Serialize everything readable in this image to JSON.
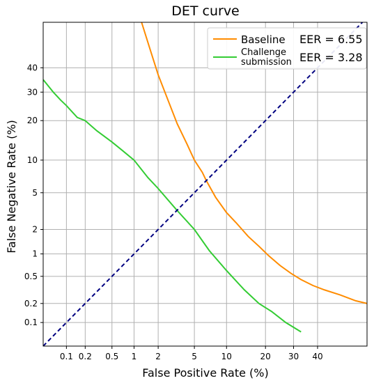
{
  "chart_data": {
    "type": "line",
    "title": "DET curve",
    "xlabel": "False Positive Rate (%)",
    "ylabel": "False Negative Rate (%)",
    "scale": "probit",
    "xlim": [
      0.04,
      62
    ],
    "ylim": [
      0.04,
      60
    ],
    "x_ticks": [
      0.1,
      0.2,
      0.5,
      1,
      2,
      5,
      10,
      20,
      30,
      40
    ],
    "x_tick_labels": [
      "0.1",
      "0.2",
      "0.5",
      "1",
      "2",
      "5",
      "10",
      "20",
      "30",
      "40"
    ],
    "y_ticks": [
      0.1,
      0.2,
      0.5,
      1,
      2,
      5,
      10,
      20,
      30,
      40
    ],
    "y_tick_labels": [
      "0.1",
      "0.2",
      "0.5",
      "1",
      "2",
      "5",
      "10",
      "20",
      "30",
      "40"
    ],
    "grid": true,
    "legend_position": "top-right",
    "series": [
      {
        "name": "Baseline",
        "eer_label": "EER = 6.55",
        "color": "#ff8c00",
        "x": [
          1.25,
          1.6,
          2.0,
          2.6,
          3.3,
          4.2,
          5.0,
          6.0,
          6.55,
          8.0,
          10,
          12,
          15,
          18,
          21,
          25,
          29,
          33,
          38,
          43,
          50,
          57,
          62
        ],
        "y": [
          60,
          48,
          37,
          27,
          19,
          13.5,
          10,
          7.8,
          6.55,
          4.5,
          3.1,
          2.4,
          1.65,
          1.25,
          0.95,
          0.7,
          0.55,
          0.45,
          0.37,
          0.32,
          0.27,
          0.22,
          0.2
        ]
      },
      {
        "name": "Challenge\nsubmission",
        "eer_label": "EER = 3.28",
        "color": "#33cc33",
        "x": [
          0.04,
          0.06,
          0.08,
          0.1,
          0.15,
          0.2,
          0.3,
          0.5,
          0.7,
          1.0,
          1.5,
          2.0,
          3.28,
          5.0,
          7.0,
          10,
          14,
          18,
          22,
          27,
          33
        ],
        "y": [
          35,
          30,
          27,
          25,
          21,
          20,
          17,
          14,
          12,
          10,
          7.0,
          5.5,
          3.28,
          2.0,
          1.1,
          0.6,
          0.32,
          0.2,
          0.15,
          0.1,
          0.07
        ]
      },
      {
        "name": "",
        "color": "#000080",
        "dashed": true,
        "x": [
          0.04,
          60
        ],
        "y": [
          0.04,
          60
        ]
      }
    ]
  }
}
